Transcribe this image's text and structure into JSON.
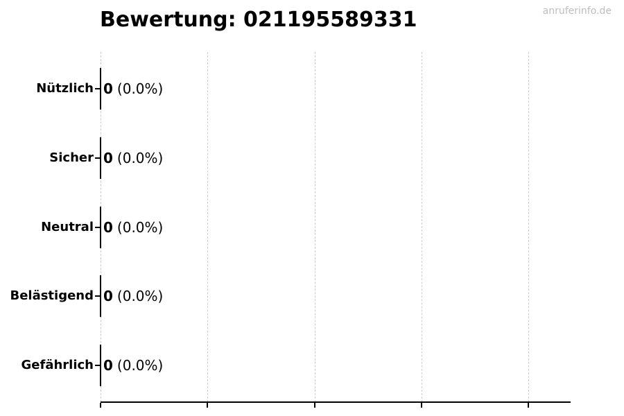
{
  "page": {
    "title": "Bewertung: 021195589331",
    "watermark": "anruferinfo.de"
  },
  "rows": [
    {
      "label": "Nützlich",
      "value": "0",
      "pct": "(0.0%)"
    },
    {
      "label": "Sicher",
      "value": "0",
      "pct": "(0.0%)"
    },
    {
      "label": "Neutral",
      "value": "0",
      "pct": "(0.0%)"
    },
    {
      "label": "Belästigend",
      "value": "0",
      "pct": "(0.0%)"
    },
    {
      "label": "Gefährlich",
      "value": "0",
      "pct": "(0.0%)"
    }
  ],
  "colors": {
    "text": "#000000",
    "watermark": "#bebebe",
    "gridline": "#cccccc",
    "axis": "#000000"
  },
  "chart_data": {
    "type": "bar",
    "orientation": "horizontal",
    "title": "Bewertung: 021195589331",
    "categories": [
      "Nützlich",
      "Sicher",
      "Neutral",
      "Belästigend",
      "Gefährlich"
    ],
    "values": [
      0,
      0,
      0,
      0,
      0
    ],
    "percentages": [
      0.0,
      0.0,
      0.0,
      0.0,
      0.0
    ],
    "data_labels": [
      "0 (0.0%)",
      "0 (0.0%)",
      "0 (0.0%)",
      "0 (0.0%)",
      "0 (0.0%)"
    ],
    "xlabel": "",
    "ylabel": "",
    "x_tick_labels": [],
    "x_gridline_count": 5,
    "grid": "vertical-dashed",
    "legend": "none"
  }
}
